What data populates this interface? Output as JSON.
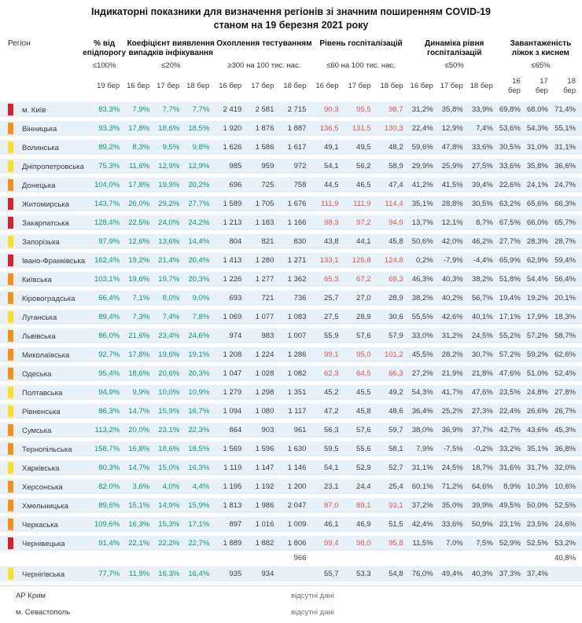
{
  "title": {
    "line1": "Індикаторні показники для визначення регіонів зі значним поширенням COVID-19",
    "line2": "станом на 19 березня 2021 року"
  },
  "colors": {
    "green_value": "#0e9676",
    "red_value": "#d85555",
    "dark_value": "#3c3c3c",
    "row_bg": "#e9f1f8",
    "marker_red": "#d2232e",
    "marker_orange": "#f5921e",
    "marker_yellow": "#ffdf2b"
  },
  "header": {
    "region_label": "Регіон",
    "groups": [
      {
        "title": "% від епідпорогу",
        "threshold": "≤100%",
        "dates": [
          "19 бер"
        ]
      },
      {
        "title": "Коефіцієнт виявлення випадків інфікування",
        "threshold": "≤20%",
        "dates": [
          "16 бер",
          "17 бер",
          "18 бер"
        ]
      },
      {
        "title": "Охоплення тестуванням",
        "threshold": "≥300 на 100 тис. нас.",
        "dates": [
          "16 бер",
          "17 бер",
          "18 бер"
        ]
      },
      {
        "title": "Рівень госпіталізацій",
        "threshold": "≤60 на 100 тис. нас.",
        "dates": [
          "16 бер",
          "17 бер",
          "18 бер"
        ]
      },
      {
        "title": "Динаміка рівня госпіталізацій",
        "threshold": "≤50%",
        "dates": [
          "16 бер",
          "17 бер",
          "18 бер"
        ]
      },
      {
        "title": "Завантаженість ліжок з киснем",
        "threshold": "≤65%",
        "dates": [
          "16 бер",
          "17 бер",
          "18 бер"
        ]
      }
    ]
  },
  "rows": [
    {
      "marker": "red",
      "region": "м. Київ",
      "epid": "83,3%",
      "coef": [
        "7,9%",
        "7,7%",
        "7,7%"
      ],
      "test": [
        "2 419",
        "2 581",
        "2 715"
      ],
      "hosp": [
        "90,3",
        "95,5",
        "98,7"
      ],
      "hosp_red": true,
      "dyn": [
        "31,2%",
        "35,8%",
        "33,9%"
      ],
      "bed": [
        "69,8%",
        "68,0%",
        "71,4%"
      ]
    },
    {
      "marker": "orange",
      "region": "Вінницька",
      "epid": "93,3%",
      "coef": [
        "17,8%",
        "18,6%",
        "18,5%"
      ],
      "test": [
        "1 920",
        "1 876",
        "1 887"
      ],
      "hosp": [
        "136,5",
        "131,5",
        "130,3"
      ],
      "hosp_red": true,
      "dyn": [
        "22,4%",
        "12,9%",
        "7,4%"
      ],
      "bed": [
        "53,6%",
        "54,3%",
        "55,1%"
      ]
    },
    {
      "marker": "yellow",
      "region": "Волинська",
      "epid": "89,2%",
      "coef": [
        "8,3%",
        "9,5%",
        "9,8%"
      ],
      "test": [
        "1 626",
        "1 586",
        "1 617"
      ],
      "hosp": [
        "49,1",
        "49,5",
        "48,2"
      ],
      "hosp_red": false,
      "dyn": [
        "59,6%",
        "47,8%",
        "33,6%"
      ],
      "bed": [
        "30,5%",
        "31,0%",
        "31,1%"
      ]
    },
    {
      "marker": "yellow",
      "region": "Дніпропетровська",
      "epid": "75,3%",
      "coef": [
        "11,6%",
        "12,9%",
        "12,9%"
      ],
      "test": [
        "985",
        "959",
        "972"
      ],
      "hosp": [
        "54,1",
        "56,2",
        "58,9"
      ],
      "hosp_red": false,
      "dyn": [
        "29,9%",
        "25,9%",
        "27,5%"
      ],
      "bed": [
        "33,6%",
        "35,8%",
        "36,6%"
      ]
    },
    {
      "marker": "orange",
      "region": "Донецька",
      "epid": "104,0%",
      "coef": [
        "17,8%",
        "19,9%",
        "20,2%"
      ],
      "test": [
        "696",
        "725",
        "758"
      ],
      "hosp": [
        "44,5",
        "46,5",
        "47,4"
      ],
      "hosp_red": false,
      "dyn": [
        "41,2%",
        "41,5%",
        "39,4%"
      ],
      "bed": [
        "22,6%",
        "24,1%",
        "24,7%"
      ]
    },
    {
      "marker": "red",
      "region": "Житомирська",
      "epid": "143,7%",
      "coef": [
        "26,0%",
        "29,2%",
        "27,7%"
      ],
      "test": [
        "1 589",
        "1 705",
        "1 676"
      ],
      "hosp": [
        "111,9",
        "111,9",
        "114,4"
      ],
      "hosp_red": true,
      "dyn": [
        "35,1%",
        "28,8%",
        "30,5%"
      ],
      "bed": [
        "63,2%",
        "65,6%",
        "66,3%"
      ]
    },
    {
      "marker": "red",
      "region": "Закарпатська",
      "epid": "128,4%",
      "coef": [
        "22,5%",
        "24,0%",
        "24,2%"
      ],
      "test": [
        "1 213",
        "1 183",
        "1 166"
      ],
      "hosp": [
        "98,3",
        "97,2",
        "94,9"
      ],
      "hosp_red": true,
      "dyn": [
        "13,7%",
        "12,1%",
        "8,7%"
      ],
      "bed": [
        "67,5%",
        "66,0%",
        "65,7%"
      ]
    },
    {
      "marker": "yellow",
      "region": "Запорізька",
      "epid": "97,9%",
      "coef": [
        "12,6%",
        "13,6%",
        "14,4%"
      ],
      "test": [
        "804",
        "821",
        "830"
      ],
      "hosp": [
        "43,8",
        "44,1",
        "45,8"
      ],
      "hosp_red": false,
      "dyn": [
        "50,6%",
        "42,0%",
        "46,2%"
      ],
      "bed": [
        "27,7%",
        "28,3%",
        "28,7%"
      ]
    },
    {
      "marker": "red",
      "region": "Івано-Франківська",
      "epid": "162,4%",
      "coef": [
        "19,2%",
        "21,4%",
        "20,4%"
      ],
      "test": [
        "1 413",
        "1 280",
        "1 271"
      ],
      "hosp": [
        "133,1",
        "125,8",
        "124,8"
      ],
      "hosp_red": true,
      "dyn": [
        "0,2%",
        "-7,9%",
        "-4,4%"
      ],
      "bed": [
        "65,9%",
        "62,9%",
        "59,4%"
      ]
    },
    {
      "marker": "orange",
      "region": "Київська",
      "epid": "103,1%",
      "coef": [
        "19,6%",
        "19,7%",
        "20,3%"
      ],
      "test": [
        "1 226",
        "1 277",
        "1 362"
      ],
      "hosp": [
        "65,3",
        "67,2",
        "69,3"
      ],
      "hosp_red": true,
      "dyn": [
        "46,3%",
        "40,3%",
        "38,2%"
      ],
      "bed": [
        "51,8%",
        "54,4%",
        "56,4%"
      ]
    },
    {
      "marker": "orange",
      "region": "Кіровоградська",
      "epid": "66,4%",
      "coef": [
        "7,1%",
        "8,0%",
        "9,0%"
      ],
      "test": [
        "693",
        "721",
        "736"
      ],
      "hosp": [
        "25,7",
        "27,0",
        "28,9"
      ],
      "hosp_red": false,
      "dyn": [
        "38,2%",
        "40,2%",
        "56,7%"
      ],
      "bed": [
        "19,4%",
        "19,2%",
        "20,1%"
      ]
    },
    {
      "marker": "yellow",
      "region": "Луганська",
      "epid": "89,4%",
      "coef": [
        "7,3%",
        "7,4%",
        "7,8%"
      ],
      "test": [
        "1 069",
        "1 077",
        "1 083"
      ],
      "hosp": [
        "27,5",
        "28,9",
        "30,6"
      ],
      "hosp_red": false,
      "dyn": [
        "55,5%",
        "42,6%",
        "40,1%"
      ],
      "bed": [
        "17,1%",
        "17,9%",
        "18,3%"
      ]
    },
    {
      "marker": "orange",
      "region": "Львівська",
      "epid": "86,0%",
      "coef": [
        "21,6%",
        "23,4%",
        "24,6%"
      ],
      "test": [
        "974",
        "983",
        "1 007"
      ],
      "hosp": [
        "55,9",
        "57,6",
        "57,9"
      ],
      "hosp_red": false,
      "dyn": [
        "33,0%",
        "31,2%",
        "24,5%"
      ],
      "bed": [
        "55,2%",
        "57,2%",
        "58,7%"
      ]
    },
    {
      "marker": "orange",
      "region": "Миколаївська",
      "epid": "92,7%",
      "coef": [
        "17,8%",
        "19,6%",
        "19,1%"
      ],
      "test": [
        "1 208",
        "1 224",
        "1 286"
      ],
      "hosp": [
        "99,1",
        "95,0",
        "101,2"
      ],
      "hosp_red": true,
      "dyn": [
        "45,5%",
        "28,2%",
        "30,7%"
      ],
      "bed": [
        "57,2%",
        "59,2%",
        "62,6%"
      ]
    },
    {
      "marker": "orange",
      "region": "Одеська",
      "epid": "95,4%",
      "coef": [
        "18,6%",
        "20,6%",
        "20,3%"
      ],
      "test": [
        "1 047",
        "1 028",
        "1 082"
      ],
      "hosp": [
        "62,3",
        "64,5",
        "66,3"
      ],
      "hosp_red": true,
      "dyn": [
        "27,2%",
        "21,9%",
        "21,8%"
      ],
      "bed": [
        "47,6%",
        "51,0%",
        "52,4%"
      ]
    },
    {
      "marker": "yellow",
      "region": "Полтавська",
      "epid": "94,9%",
      "coef": [
        "9,9%",
        "10,0%",
        "10,9%"
      ],
      "test": [
        "1 279",
        "1 298",
        "1 351"
      ],
      "hosp": [
        "45,2",
        "45,5",
        "49,2"
      ],
      "hosp_red": false,
      "dyn": [
        "54,3%",
        "41,7%",
        "47,6%"
      ],
      "bed": [
        "23,5%",
        "24,8%",
        "27,8%"
      ]
    },
    {
      "marker": "yellow",
      "region": "Рівненська",
      "epid": "86,3%",
      "coef": [
        "14,7%",
        "15,9%",
        "16,7%"
      ],
      "test": [
        "1 094",
        "1 080",
        "1 117"
      ],
      "hosp": [
        "47,2",
        "45,8",
        "48,6"
      ],
      "hosp_red": false,
      "dyn": [
        "36,4%",
        "25,2%",
        "27,3%"
      ],
      "bed": [
        "22,4%",
        "26,6%",
        "26,7%"
      ]
    },
    {
      "marker": "orange",
      "region": "Сумська",
      "epid": "113,2%",
      "coef": [
        "20,0%",
        "23,1%",
        "22,3%"
      ],
      "test": [
        "864",
        "903",
        "961"
      ],
      "hosp": [
        "56,3",
        "57,6",
        "59,7"
      ],
      "hosp_red": false,
      "dyn": [
        "38,0%",
        "36,9%",
        "37,7%"
      ],
      "bed": [
        "42,7%",
        "43,6%",
        "45,3%"
      ]
    },
    {
      "marker": "orange",
      "region": "Тернопільська",
      "epid": "158,7%",
      "coef": [
        "16,8%",
        "18,6%",
        "18,5%"
      ],
      "test": [
        "1 569",
        "1 596",
        "1 630"
      ],
      "hosp": [
        "59,5",
        "55,6",
        "58,1"
      ],
      "hosp_red": false,
      "dyn": [
        "7,9%",
        "-7,5%",
        "-0,2%"
      ],
      "bed": [
        "33,2%",
        "35,1%",
        "36,8%"
      ]
    },
    {
      "marker": "yellow",
      "region": "Харківська",
      "epid": "80,3%",
      "coef": [
        "14,7%",
        "15,0%",
        "16,3%"
      ],
      "test": [
        "1 119",
        "1 147",
        "1 146"
      ],
      "hosp": [
        "54,1",
        "52,9",
        "52,7"
      ],
      "hosp_red": false,
      "dyn": [
        "31,1%",
        "24,5%",
        "18,7%"
      ],
      "bed": [
        "31,6%",
        "31,7%",
        "32,0%"
      ]
    },
    {
      "marker": "orange",
      "region": "Херсонська",
      "epid": "82,0%",
      "coef": [
        "3,6%",
        "4,0%",
        "4,4%"
      ],
      "test": [
        "1 195",
        "1 192",
        "1 200"
      ],
      "hosp": [
        "23,1",
        "24,4",
        "25,4"
      ],
      "hosp_red": false,
      "dyn": [
        "60,1%",
        "71,2%",
        "64,6%"
      ],
      "bed": [
        "8,9%",
        "10,3%",
        "10,6%"
      ]
    },
    {
      "marker": "orange",
      "region": "Хмельницька",
      "epid": "89,6%",
      "coef": [
        "15,1%",
        "14,9%",
        "15,9%"
      ],
      "test": [
        "1 813",
        "1 986",
        "2 047"
      ],
      "hosp": [
        "87,0",
        "89,1",
        "93,1"
      ],
      "hosp_red": true,
      "dyn": [
        "37,2%",
        "35,0%",
        "39,9%"
      ],
      "bed": [
        "49,5%",
        "50,0%",
        "52,5%"
      ]
    },
    {
      "marker": "orange",
      "region": "Черкаська",
      "epid": "109,6%",
      "coef": [
        "16,3%",
        "15,3%",
        "17,1%"
      ],
      "test": [
        "897",
        "1 016",
        "1 009"
      ],
      "hosp": [
        "46,1",
        "46,9",
        "51,5"
      ],
      "hosp_red": false,
      "dyn": [
        "42,4%",
        "33,6%",
        "50,9%"
      ],
      "bed": [
        "23,1%",
        "23,5%",
        "24,6%"
      ]
    },
    {
      "marker": "red",
      "region": "Чернівецька",
      "epid": "91,4%",
      "coef": [
        "22,1%",
        "22,2%",
        "22,7%"
      ],
      "test": [
        "1 889",
        "1 882",
        "1 806"
      ],
      "test_extra": "966",
      "hosp": [
        "99,4",
        "98,0",
        "95,8"
      ],
      "hosp_red": true,
      "dyn": [
        "11,5%",
        "7,0%",
        "7,5%"
      ],
      "bed": [
        "52,9%",
        "52,5%",
        "53,2%"
      ],
      "bed_extra": "40,8%"
    },
    {
      "marker": "yellow",
      "region": "Чернігівська",
      "epid": "77,7%",
      "coef": [
        "11,9%",
        "16,3%",
        "16,4%"
      ],
      "test": [
        "935",
        "934",
        ""
      ],
      "hosp": [
        "55,7",
        "53,3",
        "54,8"
      ],
      "hosp_red": false,
      "dyn": [
        "76,0%",
        "49,4%",
        "40,3%"
      ],
      "bed": [
        "37,3%",
        "37,4%",
        ""
      ]
    }
  ],
  "no_data_rows": [
    {
      "region": "АР Крим",
      "note": "відсутні дані"
    },
    {
      "region": "м. Севастополь",
      "note": "відсутні дані"
    }
  ]
}
